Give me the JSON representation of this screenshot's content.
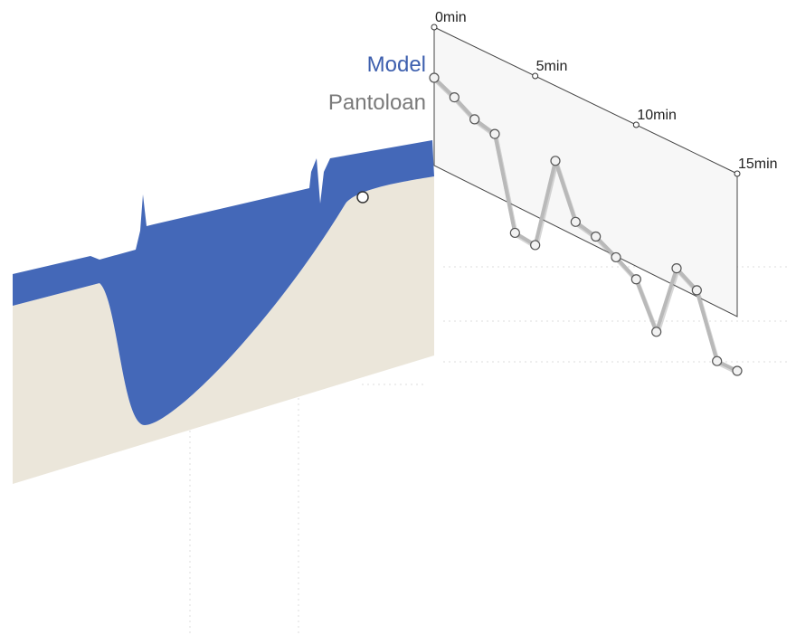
{
  "legend": {
    "model_label": "Model",
    "observed_label": "Pantoloan"
  },
  "colors": {
    "water": "#4468b8",
    "terrain": "#ebe6da",
    "observed_line": "#b9b9b9",
    "panel_fill": "#f7f7f7",
    "panel_border": "#444444"
  },
  "chart_data": {
    "type": "line",
    "x_ticks": [
      {
        "t": 0,
        "label": "0min"
      },
      {
        "t": 5,
        "label": "5min"
      },
      {
        "t": 10,
        "label": "10min"
      },
      {
        "t": 15,
        "label": "15min"
      }
    ],
    "series": [
      {
        "name": "Pantoloan",
        "x": [
          0,
          1,
          2,
          3,
          4,
          5,
          6,
          7,
          8,
          9,
          10,
          11,
          12,
          13,
          14,
          15
        ],
        "y": [
          0.0,
          -0.08,
          -0.18,
          -0.22,
          -0.95,
          -0.97,
          -0.2,
          -0.62,
          -0.66,
          -0.75,
          -0.85,
          -1.2,
          -0.6,
          -0.7,
          -1.2,
          -1.2
        ]
      }
    ],
    "ylim": [
      -1.4,
      0.3
    ]
  }
}
